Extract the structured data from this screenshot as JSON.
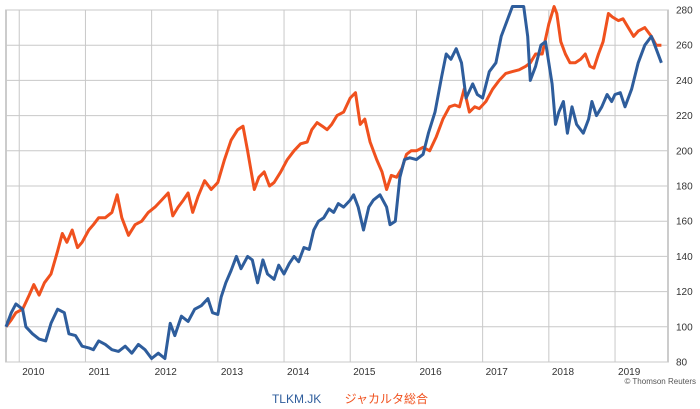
{
  "chart_data": {
    "type": "line",
    "title": "",
    "xlabel": "",
    "ylabel": "",
    "x_tick_labels": [
      "2010",
      "2011",
      "2012",
      "2013",
      "2014",
      "2015",
      "2016",
      "2017",
      "2018",
      "2019"
    ],
    "y_ticks": [
      80,
      100,
      120,
      140,
      160,
      180,
      200,
      220,
      240,
      260,
      280
    ],
    "ylim": [
      80,
      280
    ],
    "xlim": [
      2009.8,
      2019.8
    ],
    "grid": true,
    "legend_position": "bottom-center",
    "credit": "© Thomson Reuters",
    "series": [
      {
        "name": "TLKM.JK",
        "color": "#2e5d9c",
        "points": [
          [
            2009.8,
            100
          ],
          [
            2009.88,
            108
          ],
          [
            2009.95,
            113
          ],
          [
            2010.05,
            110
          ],
          [
            2010.1,
            100
          ],
          [
            2010.2,
            96
          ],
          [
            2010.3,
            93
          ],
          [
            2010.4,
            92
          ],
          [
            2010.48,
            102
          ],
          [
            2010.58,
            110
          ],
          [
            2010.68,
            108
          ],
          [
            2010.75,
            96
          ],
          [
            2010.85,
            95
          ],
          [
            2010.95,
            89
          ],
          [
            2011.05,
            88
          ],
          [
            2011.12,
            87
          ],
          [
            2011.2,
            92
          ],
          [
            2011.3,
            90
          ],
          [
            2011.4,
            87
          ],
          [
            2011.5,
            86
          ],
          [
            2011.6,
            89
          ],
          [
            2011.7,
            85
          ],
          [
            2011.8,
            90
          ],
          [
            2011.9,
            87
          ],
          [
            2012.0,
            82
          ],
          [
            2012.1,
            85
          ],
          [
            2012.2,
            82
          ],
          [
            2012.28,
            102
          ],
          [
            2012.35,
            95
          ],
          [
            2012.45,
            106
          ],
          [
            2012.55,
            103
          ],
          [
            2012.65,
            110
          ],
          [
            2012.75,
            112
          ],
          [
            2012.85,
            116
          ],
          [
            2012.92,
            108
          ],
          [
            2013.0,
            107
          ],
          [
            2013.05,
            117
          ],
          [
            2013.12,
            125
          ],
          [
            2013.2,
            132
          ],
          [
            2013.28,
            140
          ],
          [
            2013.35,
            133
          ],
          [
            2013.45,
            140
          ],
          [
            2013.52,
            138
          ],
          [
            2013.6,
            125
          ],
          [
            2013.68,
            138
          ],
          [
            2013.75,
            130
          ],
          [
            2013.85,
            127
          ],
          [
            2013.92,
            135
          ],
          [
            2014.0,
            130
          ],
          [
            2014.08,
            136
          ],
          [
            2014.15,
            140
          ],
          [
            2014.22,
            137
          ],
          [
            2014.3,
            145
          ],
          [
            2014.38,
            144
          ],
          [
            2014.45,
            155
          ],
          [
            2014.52,
            160
          ],
          [
            2014.6,
            162
          ],
          [
            2014.68,
            167
          ],
          [
            2014.75,
            165
          ],
          [
            2014.82,
            170
          ],
          [
            2014.9,
            168
          ],
          [
            2015.0,
            172
          ],
          [
            2015.05,
            175
          ],
          [
            2015.12,
            168
          ],
          [
            2015.2,
            155
          ],
          [
            2015.28,
            168
          ],
          [
            2015.35,
            172
          ],
          [
            2015.45,
            175
          ],
          [
            2015.55,
            168
          ],
          [
            2015.6,
            158
          ],
          [
            2015.68,
            160
          ],
          [
            2015.75,
            185
          ],
          [
            2015.82,
            195
          ],
          [
            2015.9,
            196
          ],
          [
            2016.0,
            195
          ],
          [
            2016.1,
            198
          ],
          [
            2016.18,
            210
          ],
          [
            2016.28,
            222
          ],
          [
            2016.38,
            242
          ],
          [
            2016.45,
            255
          ],
          [
            2016.52,
            252
          ],
          [
            2016.6,
            258
          ],
          [
            2016.68,
            250
          ],
          [
            2016.75,
            230
          ],
          [
            2016.85,
            238
          ],
          [
            2016.92,
            232
          ],
          [
            2017.0,
            230
          ],
          [
            2017.1,
            245
          ],
          [
            2017.2,
            250
          ],
          [
            2017.28,
            265
          ],
          [
            2017.35,
            272
          ],
          [
            2017.45,
            282
          ],
          [
            2017.55,
            285
          ],
          [
            2017.62,
            282
          ],
          [
            2017.68,
            265
          ],
          [
            2017.72,
            240
          ],
          [
            2017.8,
            248
          ],
          [
            2017.88,
            260
          ],
          [
            2017.95,
            262
          ],
          [
            2018.05,
            238
          ],
          [
            2018.1,
            215
          ],
          [
            2018.15,
            222
          ],
          [
            2018.22,
            228
          ],
          [
            2018.28,
            210
          ],
          [
            2018.35,
            225
          ],
          [
            2018.42,
            215
          ],
          [
            2018.52,
            210
          ],
          [
            2018.6,
            218
          ],
          [
            2018.65,
            228
          ],
          [
            2018.72,
            220
          ],
          [
            2018.8,
            225
          ],
          [
            2018.88,
            232
          ],
          [
            2018.95,
            228
          ],
          [
            2019.0,
            232
          ],
          [
            2019.08,
            233
          ],
          [
            2019.15,
            225
          ],
          [
            2019.25,
            235
          ],
          [
            2019.35,
            250
          ],
          [
            2019.45,
            260
          ],
          [
            2019.55,
            265
          ],
          [
            2019.62,
            258
          ],
          [
            2019.7,
            250
          ]
        ]
      },
      {
        "name": "ジャカルタ総合",
        "color": "#f0511e",
        "points": [
          [
            2009.8,
            100
          ],
          [
            2009.88,
            104
          ],
          [
            2009.95,
            108
          ],
          [
            2010.05,
            110
          ],
          [
            2010.15,
            118
          ],
          [
            2010.22,
            124
          ],
          [
            2010.3,
            118
          ],
          [
            2010.38,
            125
          ],
          [
            2010.48,
            130
          ],
          [
            2010.58,
            143
          ],
          [
            2010.65,
            153
          ],
          [
            2010.72,
            148
          ],
          [
            2010.8,
            155
          ],
          [
            2010.88,
            145
          ],
          [
            2010.95,
            148
          ],
          [
            2011.05,
            155
          ],
          [
            2011.12,
            158
          ],
          [
            2011.2,
            162
          ],
          [
            2011.3,
            162
          ],
          [
            2011.4,
            165
          ],
          [
            2011.48,
            175
          ],
          [
            2011.55,
            162
          ],
          [
            2011.65,
            152
          ],
          [
            2011.75,
            158
          ],
          [
            2011.85,
            160
          ],
          [
            2011.95,
            165
          ],
          [
            2012.05,
            168
          ],
          [
            2012.15,
            172
          ],
          [
            2012.25,
            176
          ],
          [
            2012.32,
            163
          ],
          [
            2012.4,
            168
          ],
          [
            2012.48,
            172
          ],
          [
            2012.55,
            176
          ],
          [
            2012.62,
            165
          ],
          [
            2012.7,
            174
          ],
          [
            2012.8,
            183
          ],
          [
            2012.9,
            178
          ],
          [
            2013.0,
            182
          ],
          [
            2013.1,
            195
          ],
          [
            2013.2,
            206
          ],
          [
            2013.3,
            212
          ],
          [
            2013.38,
            214
          ],
          [
            2013.45,
            200
          ],
          [
            2013.55,
            178
          ],
          [
            2013.62,
            185
          ],
          [
            2013.7,
            188
          ],
          [
            2013.78,
            180
          ],
          [
            2013.85,
            182
          ],
          [
            2013.95,
            188
          ],
          [
            2014.05,
            195
          ],
          [
            2014.15,
            200
          ],
          [
            2014.25,
            204
          ],
          [
            2014.35,
            205
          ],
          [
            2014.42,
            212
          ],
          [
            2014.5,
            216
          ],
          [
            2014.58,
            214
          ],
          [
            2014.65,
            212
          ],
          [
            2014.72,
            215
          ],
          [
            2014.8,
            220
          ],
          [
            2014.9,
            222
          ],
          [
            2015.0,
            230
          ],
          [
            2015.08,
            233
          ],
          [
            2015.15,
            215
          ],
          [
            2015.22,
            218
          ],
          [
            2015.3,
            205
          ],
          [
            2015.4,
            195
          ],
          [
            2015.48,
            188
          ],
          [
            2015.55,
            178
          ],
          [
            2015.62,
            186
          ],
          [
            2015.7,
            185
          ],
          [
            2015.78,
            190
          ],
          [
            2015.85,
            198
          ],
          [
            2015.92,
            200
          ],
          [
            2016.0,
            200
          ],
          [
            2016.1,
            202
          ],
          [
            2016.2,
            200
          ],
          [
            2016.3,
            208
          ],
          [
            2016.4,
            218
          ],
          [
            2016.5,
            225
          ],
          [
            2016.58,
            226
          ],
          [
            2016.65,
            225
          ],
          [
            2016.72,
            235
          ],
          [
            2016.8,
            222
          ],
          [
            2016.88,
            225
          ],
          [
            2016.95,
            224
          ],
          [
            2017.05,
            228
          ],
          [
            2017.15,
            235
          ],
          [
            2017.25,
            240
          ],
          [
            2017.35,
            244
          ],
          [
            2017.45,
            245
          ],
          [
            2017.55,
            246
          ],
          [
            2017.65,
            248
          ],
          [
            2017.72,
            250
          ],
          [
            2017.8,
            255
          ],
          [
            2017.9,
            255
          ],
          [
            2018.0,
            272
          ],
          [
            2018.08,
            282
          ],
          [
            2018.12,
            278
          ],
          [
            2018.18,
            262
          ],
          [
            2018.25,
            255
          ],
          [
            2018.32,
            250
          ],
          [
            2018.4,
            250
          ],
          [
            2018.48,
            252
          ],
          [
            2018.55,
            255
          ],
          [
            2018.62,
            248
          ],
          [
            2018.68,
            247
          ],
          [
            2018.75,
            255
          ],
          [
            2018.82,
            262
          ],
          [
            2018.9,
            278
          ],
          [
            2018.96,
            276
          ],
          [
            2019.05,
            274
          ],
          [
            2019.12,
            275
          ],
          [
            2019.2,
            270
          ],
          [
            2019.28,
            265
          ],
          [
            2019.35,
            268
          ],
          [
            2019.45,
            270
          ],
          [
            2019.55,
            265
          ],
          [
            2019.62,
            260
          ],
          [
            2019.7,
            260
          ]
        ]
      }
    ]
  }
}
